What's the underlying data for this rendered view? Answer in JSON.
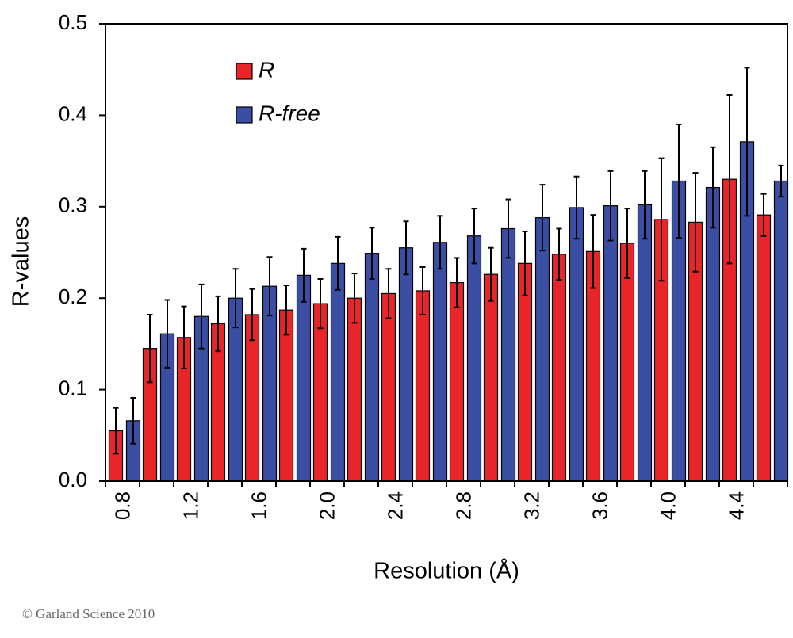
{
  "chart_data": {
    "type": "bar",
    "x_label": "Resolution (Å)",
    "y_label": "R-values",
    "categories": [
      "0.8",
      null,
      "1.2",
      null,
      "1.6",
      null,
      "2.0",
      null,
      "2.4",
      null,
      "2.8",
      null,
      "3.2",
      null,
      "3.6",
      null,
      "4.0",
      null,
      "4.4",
      null
    ],
    "series": [
      {
        "name": "R",
        "color": "#e8262a",
        "values": [
          0.055,
          0.145,
          0.157,
          0.172,
          0.182,
          0.187,
          0.194,
          0.2,
          0.205,
          0.208,
          0.217,
          0.226,
          0.238,
          0.248,
          0.251,
          0.26,
          0.286,
          0.283,
          0.33,
          0.291
        ],
        "errors": [
          0.025,
          0.037,
          0.034,
          0.03,
          0.028,
          0.027,
          0.027,
          0.027,
          0.027,
          0.026,
          0.027,
          0.029,
          0.035,
          0.028,
          0.04,
          0.038,
          0.067,
          0.054,
          0.092,
          0.023
        ]
      },
      {
        "name": "R-free",
        "color": "#3a4ea3",
        "values": [
          0.066,
          0.161,
          0.18,
          0.2,
          0.213,
          0.225,
          0.238,
          0.249,
          0.255,
          0.261,
          0.268,
          0.276,
          0.288,
          0.299,
          0.301,
          0.302,
          0.328,
          0.321,
          0.371,
          0.328
        ],
        "errors": [
          0.025,
          0.037,
          0.035,
          0.032,
          0.032,
          0.029,
          0.029,
          0.028,
          0.029,
          0.029,
          0.03,
          0.032,
          0.036,
          0.034,
          0.038,
          0.037,
          0.062,
          0.044,
          0.081,
          0.017
        ]
      }
    ],
    "ylim": [
      0,
      0.5
    ],
    "yticks": [
      {
        "value": 0,
        "label": "0.0"
      },
      0.1,
      0.2,
      0.3,
      0.4,
      0.5
    ],
    "legend": "upper left",
    "footnote": "© Garland Science 2010"
  }
}
